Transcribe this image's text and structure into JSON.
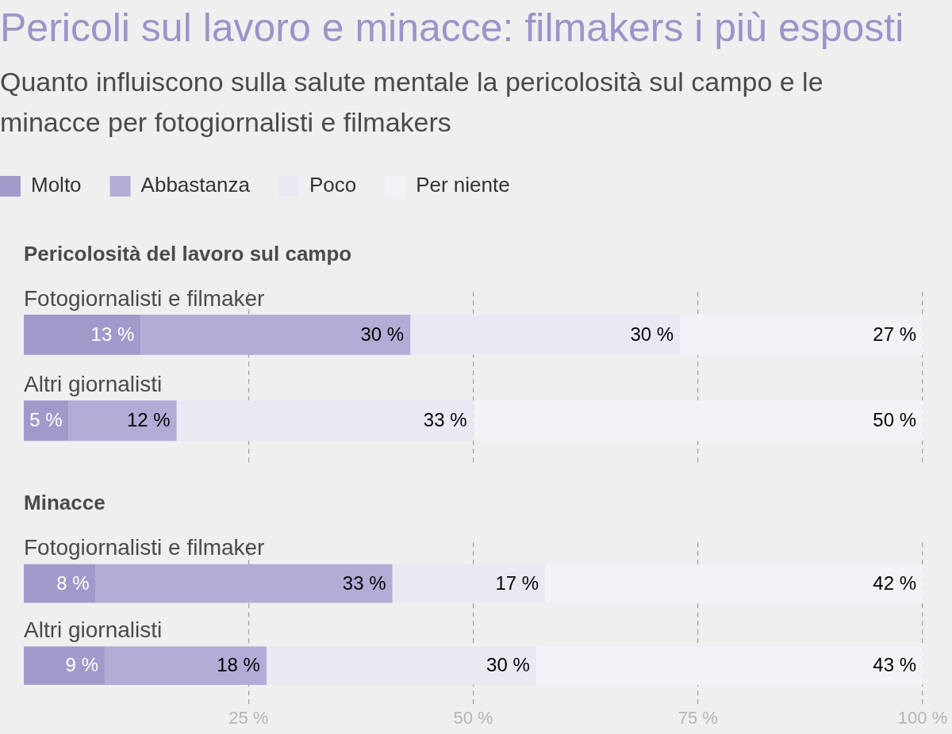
{
  "chart_data": [
    {
      "type": "other",
      "title": "Pericoli sul lavoro e minacce: filmakers i più esposti",
      "subtitle": "Quanto influiscono sulla salute mentale la pericolosità sul campo e le minacce per fotogiornalisti e filmakers"
    },
    {
      "type": "bar",
      "orientation": "horizontal",
      "stacked": true,
      "title": "Pericolosità del lavoro sul campo",
      "categories": [
        "Fotogiornalisti e filmaker",
        "Altri giornalisti"
      ],
      "series": [
        {
          "name": "Molto",
          "color": "#a299cb",
          "values": [
            13,
            5
          ],
          "value_labels": [
            "13 %",
            "5 %"
          ]
        },
        {
          "name": "Abbastanza",
          "color": "#b3acd6",
          "values": [
            30,
            12
          ],
          "value_labels": [
            "30 %",
            "12 %"
          ]
        },
        {
          "name": "Poco",
          "color": "#eae8f3",
          "values": [
            30,
            33
          ],
          "value_labels": [
            "30 %",
            "33 %"
          ]
        },
        {
          "name": "Per niente",
          "color": "#f3f2f7",
          "values": [
            27,
            50
          ],
          "value_labels": [
            "27 %",
            "50 %"
          ]
        }
      ],
      "xlim": [
        0,
        100
      ],
      "xticks": [
        {
          "value": 25,
          "label": null
        },
        {
          "value": 50,
          "label": null
        },
        {
          "value": 75,
          "label": null
        },
        {
          "value": 100,
          "label": null
        }
      ],
      "grid": "x",
      "legend": "top left",
      "tick_labels": "y"
    },
    {
      "type": "bar",
      "orientation": "horizontal",
      "stacked": true,
      "title": "Minacce",
      "categories": [
        "Fotogiornalisti e filmaker",
        "Altri giornalisti"
      ],
      "series": [
        {
          "color": "#a299cb",
          "values": [
            8,
            9
          ],
          "value_labels": [
            "8 %",
            "9 %"
          ]
        },
        {
          "color": "#b3acd6",
          "values": [
            33,
            18
          ],
          "value_labels": [
            "33 %",
            "18 %"
          ]
        },
        {
          "color": "#eae8f3",
          "values": [
            17,
            30
          ],
          "value_labels": [
            "17 %",
            "30 %"
          ]
        },
        {
          "color": "#f3f2f7",
          "values": [
            42,
            43
          ],
          "value_labels": [
            "42 %",
            "43 %"
          ]
        }
      ],
      "xlim": [
        0,
        100
      ],
      "xticks": [
        {
          "value": 25,
          "label": "25 %"
        },
        {
          "value": 50,
          "label": "50 %"
        },
        {
          "value": 75,
          "label": "75 %"
        },
        {
          "value": 100,
          "label": "100 %"
        }
      ],
      "grid": "x",
      "legend": false
    }
  ]
}
